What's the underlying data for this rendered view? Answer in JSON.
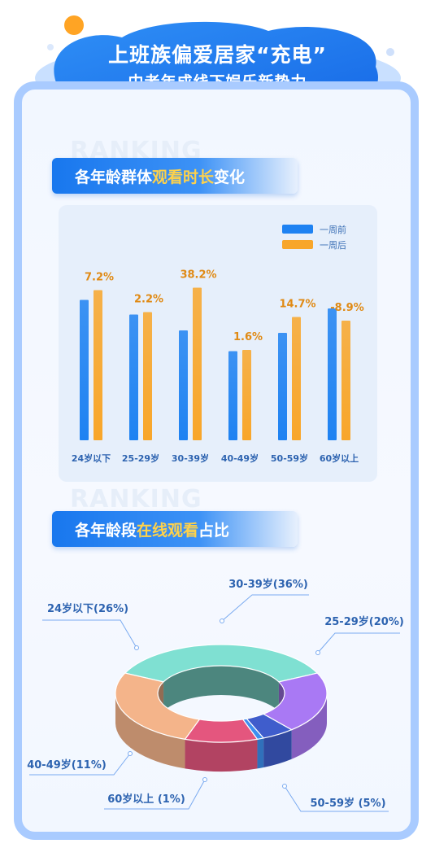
{
  "header": {
    "title": "上班族偏爱居家“充电”",
    "subtitle": "中老年成线下娱乐新势力"
  },
  "watermark": "RANKING",
  "section1": {
    "prefix": "各年龄群体",
    "highlight": "观看时长",
    "suffix": "变化"
  },
  "section2": {
    "prefix": "各年龄段",
    "highlight": "在线观看",
    "suffix": "占比"
  },
  "colors": {
    "before": "#1e82f2",
    "after": "#f8a62a",
    "label": "#2d63b0",
    "change_label": "#e08a14",
    "frame": "#a9cbff"
  },
  "chart_data": [
    {
      "type": "bar",
      "categories": [
        "24岁以下",
        "25-29岁",
        "30-39岁",
        "40-49岁",
        "50-59岁",
        "60岁以上"
      ],
      "series": [
        {
          "name": "一周前",
          "values": [
            115,
            103,
            90,
            73,
            88,
            108
          ]
        },
        {
          "name": "一周后",
          "values": [
            123,
            105,
            125,
            74,
            101,
            98
          ]
        }
      ],
      "data_labels": [
        "7.2%",
        "2.2%",
        "38.2%",
        "1.6%",
        "14.7%",
        "-8.9%"
      ],
      "ylim": [
        0,
        200
      ],
      "legend_position": "top-right",
      "grid": false
    },
    {
      "type": "pie",
      "style": "3d-ring",
      "slices": [
        {
          "label": "30-39岁(36%)",
          "value": 36,
          "color": "#7fe0d2"
        },
        {
          "label": "25-29岁(20%)",
          "value": 20,
          "color": "#a979f4"
        },
        {
          "label": "50-59岁 (5%)",
          "value": 5,
          "color": "#3f5dcc"
        },
        {
          "label": "60岁以上 (1%)",
          "value": 1,
          "color": "#3d8ff0"
        },
        {
          "label": "40-49岁(11%)",
          "value": 11,
          "color": "#e4567e"
        },
        {
          "label": "24岁以下(26%)",
          "value": 26,
          "color": "#f4b48a"
        }
      ]
    }
  ]
}
